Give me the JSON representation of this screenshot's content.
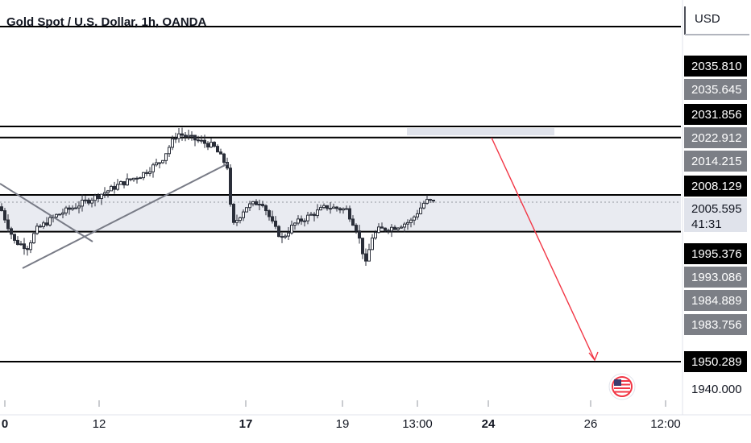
{
  "header": {
    "symbol_title": "Gold Spot / U.S. Dollar, 1h, OANDA",
    "currency": "USD"
  },
  "colors": {
    "bull": "#089981",
    "bear": "#131722",
    "candle": "#2a2e39",
    "level_line": "#000000",
    "zone_fill": "#e0e3eb",
    "arrow": "#f23645",
    "trend_line": "#787b86",
    "tag_dark": "#000000",
    "tag_grey": "#7c7f86",
    "tag_light": "#ffffff"
  },
  "price_axis": {
    "labels": [
      {
        "value": 2035.81,
        "text": "2035.810",
        "style": "dark"
      },
      {
        "value": 2035.645,
        "text": "2035.645",
        "style": "grey"
      },
      {
        "value": 2031.856,
        "text": "2031.856",
        "style": "dark"
      },
      {
        "value": 2022.912,
        "text": "2022.912",
        "style": "grey"
      },
      {
        "value": 2014.215,
        "text": "2014.215",
        "style": "grey"
      },
      {
        "value": 2008.129,
        "text": "2008.129",
        "style": "dark"
      },
      {
        "value": 2005.595,
        "text": "2005.595",
        "style": "light",
        "sub": "41:31"
      },
      {
        "value": 1995.376,
        "text": "1995.376",
        "style": "dark"
      },
      {
        "value": 1993.086,
        "text": "1993.086",
        "style": "grey"
      },
      {
        "value": 1984.889,
        "text": "1984.889",
        "style": "grey"
      },
      {
        "value": 1983.756,
        "text": "1983.756",
        "style": "grey"
      },
      {
        "value": 1950.289,
        "text": "1950.289",
        "style": "dark"
      },
      {
        "value": 1940.0,
        "text": "1940.000",
        "style": "plain"
      }
    ]
  },
  "time_axis": {
    "ticks": [
      {
        "text": "0",
        "bold": true
      },
      {
        "text": "12",
        "bold": false
      },
      {
        "text": "17",
        "bold": true
      },
      {
        "text": "19",
        "bold": false
      },
      {
        "text": "13:00",
        "bold": false
      },
      {
        "text": "24",
        "bold": true
      },
      {
        "text": "26",
        "bold": false
      },
      {
        "text": "12:00",
        "bold": false
      }
    ]
  },
  "chart_data": {
    "type": "candlestick",
    "title": "Gold Spot / U.S. Dollar, 1h, OANDA",
    "price_levels": [
      2035.81,
      2031.856,
      2008.129,
      1995.376,
      1950.289
    ],
    "support_resistance_zone": [
      1995.376,
      2008.129
    ],
    "current_price": 2005.595,
    "projection": {
      "from": 2031.856,
      "to": 1950.289,
      "direction": "down"
    },
    "key_swings": [
      {
        "label": "start",
        "price": 2004.0
      },
      {
        "label": "low",
        "price": 1991.0
      },
      {
        "label": "high",
        "price": 2029.5
      },
      {
        "label": "drop",
        "price": 1997.0
      },
      {
        "label": "low",
        "price": 1983.0
      },
      {
        "label": "last",
        "price": 2005.6
      }
    ]
  }
}
